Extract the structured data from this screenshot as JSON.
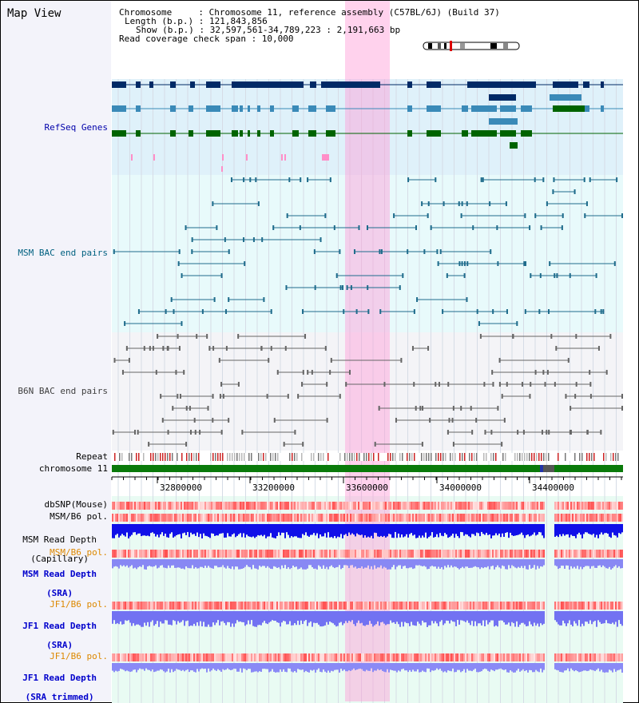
{
  "page": {
    "title": "Map View"
  },
  "info": {
    "chromosome": "Chromosome     : Chromosome 11, reference assembly (C57BL/6J) (Build 37)",
    "length": "Length (b.p.) : 121,843,856",
    "show": "Show (b.p.) : 32,597,561-34,789,223 : 2,191,663 bp",
    "coverage": "Read coverage check span : 10,000"
  },
  "tracks": {
    "refseq": "RefSeq Genes",
    "msm_bac": "MSM BAC end pairs",
    "b6n_bac": "B6N BAC end pairs",
    "repeat": "Repeat",
    "chromosome": "chromosome 11",
    "dbsnp": "dbSNP(Mouse)",
    "msm_b6_pol_1": "MSM/B6 pol.",
    "msm_depth_cap_1": "MSM Read Depth",
    "msm_depth_cap_2": "(Capillary)",
    "msm_b6_pol_2": "MSM/B6 pol.",
    "msm_depth_sra_1": "MSM Read Depth",
    "msm_depth_sra_2": "(SRA)",
    "jf1_b6_pol_1": "JF1/B6 pol.",
    "jf1_depth_sra_1": "JF1 Read Depth",
    "jf1_depth_sra_2": "(SRA)",
    "jf1_b6_pol_2": "JF1/B6 pol.",
    "jf1_depth_trim_1": "JF1 Read Depth",
    "jf1_depth_trim_2": "(SRA trimmed)"
  },
  "axis": {
    "ticks": [
      "32800000",
      "33200000",
      "33600000",
      "34000000",
      "34400000"
    ]
  },
  "colors": {
    "refseq_label": "#0000aa",
    "msm_label": "#006080",
    "b6n_label": "#404040",
    "orange_label": "#dd8800",
    "blue_label": "#0000cc",
    "highlight": "#ff9bd8",
    "gene_dark": "#002a66",
    "gene_mid": "#3a8ab8",
    "gene_green": "#006400"
  }
}
